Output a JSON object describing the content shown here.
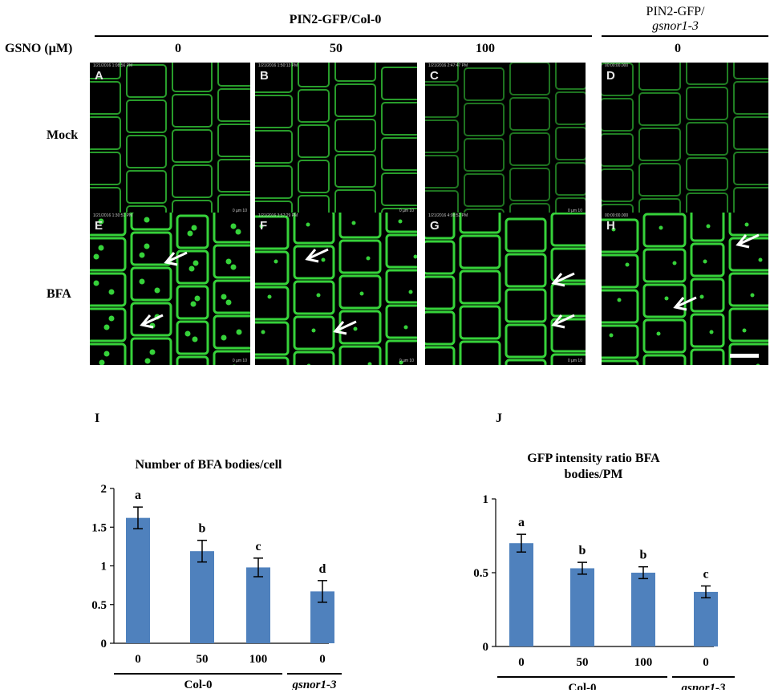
{
  "header": {
    "group_col0": "PIN2-GFP/Col-0",
    "group_gsnor_line1": "PIN2-GFP/",
    "group_gsnor_line2": "gsnor1-3",
    "gsno_label": "GSNO (µM)",
    "conc": [
      "0",
      "50",
      "100",
      "0"
    ]
  },
  "rows": {
    "mock": "Mock",
    "bfa": "BFA"
  },
  "panels": {
    "labels": [
      "A",
      "B",
      "C",
      "D",
      "E",
      "F",
      "G",
      "H"
    ],
    "stamps": [
      "1/21/2016 1:08:56 PM",
      "1/21/2016 1:50:13 PM",
      "1/21/2016 2:47:47 PM",
      "00:00:00.000",
      "1/21/2016 1:30:51 PM",
      "1/21/2016 3:57:29 PM",
      "1/21/2016 4:08:52 PM",
      "00:00:00.000"
    ],
    "scale_text": "0     µm     10"
  },
  "colors": {
    "gfp": "#36d23a",
    "bar": "#4f81bd",
    "background": "#000000",
    "arrow": "#ffffff"
  },
  "chart_data": [
    {
      "type": "bar",
      "panel_letter": "I",
      "title": "Number of BFA bodies/cell",
      "categories": [
        "0",
        "50",
        "100",
        "0"
      ],
      "values": [
        1.62,
        1.19,
        0.98,
        0.67
      ],
      "errors": [
        0.14,
        0.14,
        0.12,
        0.14
      ],
      "significance": [
        "a",
        "b",
        "c",
        "d"
      ],
      "ylim": [
        0,
        2
      ],
      "yticks": [
        "0",
        "0.5",
        "1",
        "1.5",
        "2"
      ],
      "group_labels": [
        "Col-0",
        "gsnor1-3"
      ]
    },
    {
      "type": "bar",
      "panel_letter": "J",
      "title_line1": "GFP intensity ratio BFA",
      "title_line2": "bodies/PM",
      "categories": [
        "0",
        "50",
        "100",
        "0"
      ],
      "values": [
        0.7,
        0.53,
        0.5,
        0.37
      ],
      "errors": [
        0.06,
        0.04,
        0.04,
        0.04
      ],
      "significance": [
        "a",
        "b",
        "b",
        "c"
      ],
      "ylim": [
        0,
        1
      ],
      "yticks": [
        "0",
        "0.5",
        "1"
      ],
      "group_labels": [
        "Col-0",
        "gsnor1-3"
      ]
    }
  ]
}
